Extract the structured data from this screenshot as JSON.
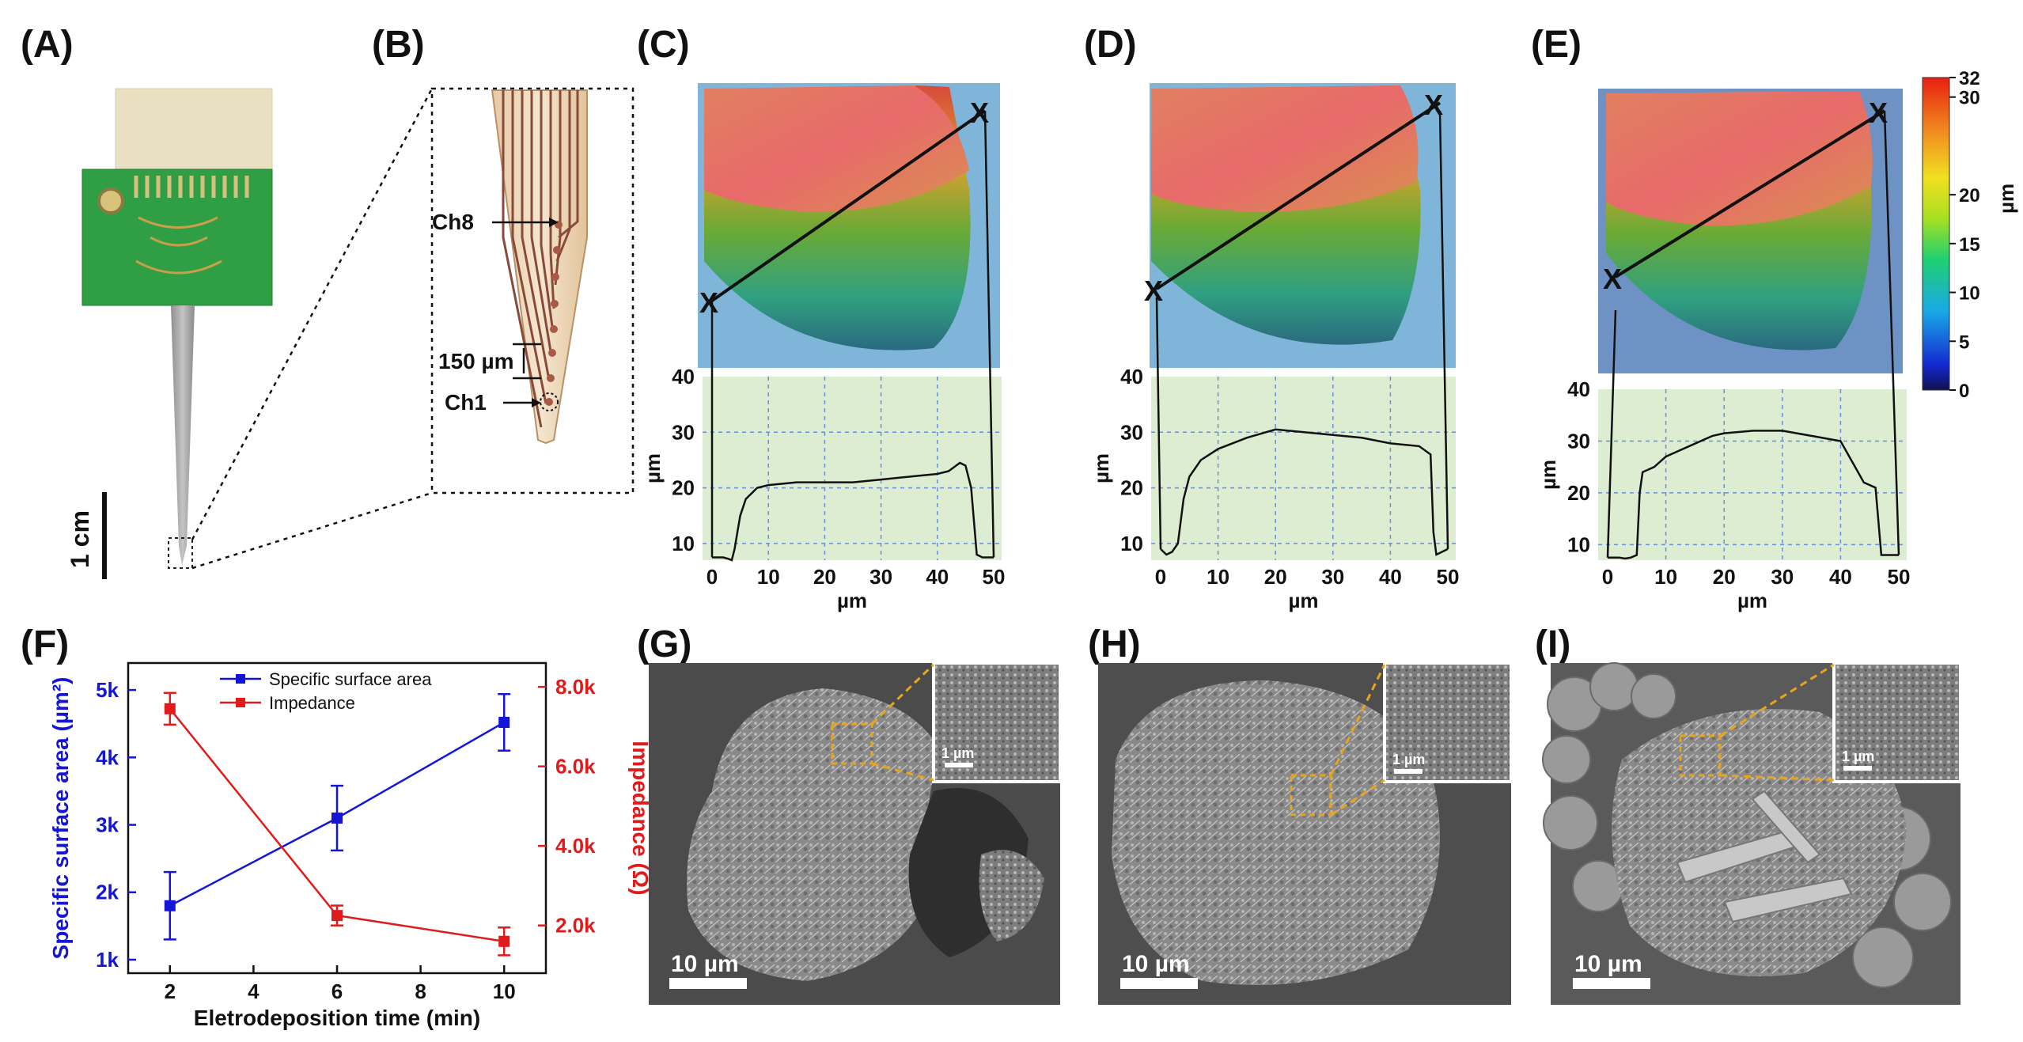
{
  "panels": {
    "A": {
      "label": "(A)",
      "scale_bar": "1 cm"
    },
    "B": {
      "label": "(B)",
      "channels": [
        "Ch8",
        "Ch1"
      ],
      "spacing": "150 µm"
    },
    "C": {
      "label": "(C)",
      "marker": "X"
    },
    "D": {
      "label": "(D)",
      "marker": "X"
    },
    "E": {
      "label": "(E)",
      "marker": "X"
    },
    "F": {
      "label": "(F)"
    },
    "G": {
      "label": "(G)",
      "scale_bar": "10 µm",
      "inset_scale": "1 µm"
    },
    "H": {
      "label": "(H)",
      "scale_bar": "10 µm",
      "inset_scale": "1 µm"
    },
    "I": {
      "label": "(I)",
      "scale_bar": "10 µm",
      "inset_scale": "1 µm"
    }
  },
  "colorbar": {
    "unit": "µm",
    "ticks": [
      "32",
      "30",
      "20",
      "15",
      "10",
      "5",
      "0"
    ],
    "tick_values": [
      32,
      30,
      20,
      15,
      10,
      5,
      0
    ],
    "range": [
      0,
      32
    ]
  },
  "colors": {
    "blue_series": "#1515d8",
    "red_series": "#e01b1b",
    "profile_bg": "#dcedd2",
    "grid": "#6f8fd0",
    "sem_bg": "#5a5a5a",
    "inset_box": "#e8a51c"
  },
  "chart_data": [
    {
      "type": "line",
      "panel": "C",
      "xlabel": "µm",
      "ylabel": "µm",
      "xlim": [
        0,
        50
      ],
      "ylim": [
        7,
        40
      ],
      "xticks": [
        "0",
        "10",
        "20",
        "30",
        "40",
        "50"
      ],
      "yticks": [
        "10",
        "20",
        "30",
        "40"
      ],
      "grid": true,
      "x": [
        0,
        1,
        2,
        3,
        3.5,
        4,
        4.5,
        5,
        6,
        8,
        10,
        15,
        20,
        25,
        30,
        35,
        40,
        42,
        44,
        45,
        46,
        47,
        48,
        49,
        50
      ],
      "y": [
        7.5,
        7.5,
        7.5,
        7.2,
        7,
        9,
        12,
        15,
        18,
        20,
        20.5,
        21,
        21,
        21,
        21.5,
        22,
        22.5,
        23,
        24.5,
        24,
        20,
        8,
        7.5,
        7.5,
        7.5
      ]
    },
    {
      "type": "line",
      "panel": "D",
      "xlabel": "µm",
      "ylabel": "µm",
      "xlim": [
        0,
        50
      ],
      "ylim": [
        7,
        40
      ],
      "xticks": [
        "0",
        "10",
        "20",
        "30",
        "40",
        "50"
      ],
      "yticks": [
        "10",
        "20",
        "30",
        "40"
      ],
      "grid": true,
      "x": [
        0,
        1,
        2,
        3,
        3.5,
        4,
        5,
        7,
        10,
        15,
        20,
        25,
        30,
        35,
        40,
        45,
        47,
        47.5,
        48,
        49,
        50
      ],
      "y": [
        9,
        8,
        8.5,
        10,
        14,
        18,
        22,
        25,
        27,
        29,
        30.5,
        30,
        29.5,
        29,
        28,
        27.5,
        26,
        12,
        8,
        8.5,
        9
      ]
    },
    {
      "type": "line",
      "panel": "E",
      "xlabel": "µm",
      "ylabel": "µm",
      "xlim": [
        0,
        50
      ],
      "ylim": [
        7,
        40
      ],
      "xticks": [
        "0",
        "10",
        "20",
        "30",
        "40",
        "50"
      ],
      "yticks": [
        "10",
        "20",
        "30",
        "40"
      ],
      "grid": true,
      "x": [
        0,
        1,
        2,
        3,
        4,
        5,
        5.5,
        6,
        8,
        10,
        12,
        15,
        18,
        20,
        25,
        30,
        35,
        40,
        42,
        43,
        44,
        46,
        47,
        48,
        49,
        50
      ],
      "y": [
        7.5,
        7.5,
        7.5,
        7.3,
        7.5,
        8,
        20,
        24,
        25,
        27,
        28,
        29.5,
        31,
        31.5,
        32,
        32,
        31,
        30,
        26,
        24,
        22,
        21,
        8,
        8,
        8,
        8
      ]
    },
    {
      "type": "line",
      "panel": "F",
      "xlabel": "Eletrodeposition time (min)",
      "ylabel": "Specific surface area (µm²)",
      "y2label": "Impedance (Ω)",
      "xlim": [
        1,
        11
      ],
      "ylim": [
        0.8,
        5.4
      ],
      "y2lim": [
        0.8,
        8.6
      ],
      "xticks": [
        "2",
        "4",
        "6",
        "8",
        "10"
      ],
      "yticks": [
        "1k",
        "2k",
        "3k",
        "4k",
        "5k"
      ],
      "y2ticks": [
        "2.0k",
        "4.0k",
        "6.0k",
        "8.0k"
      ],
      "legend_position": "top-center",
      "series": [
        {
          "name": "Specific surface area",
          "axis": "left",
          "x": [
            2,
            6,
            10
          ],
          "values": [
            1.8,
            3.1,
            4.52
          ],
          "errors": [
            0.5,
            0.48,
            0.42
          ]
        },
        {
          "name": "Impedance",
          "axis": "right",
          "x": [
            2,
            6,
            10
          ],
          "values": [
            7.45,
            2.25,
            1.6
          ],
          "errors": [
            0.4,
            0.25,
            0.35
          ]
        }
      ]
    }
  ]
}
